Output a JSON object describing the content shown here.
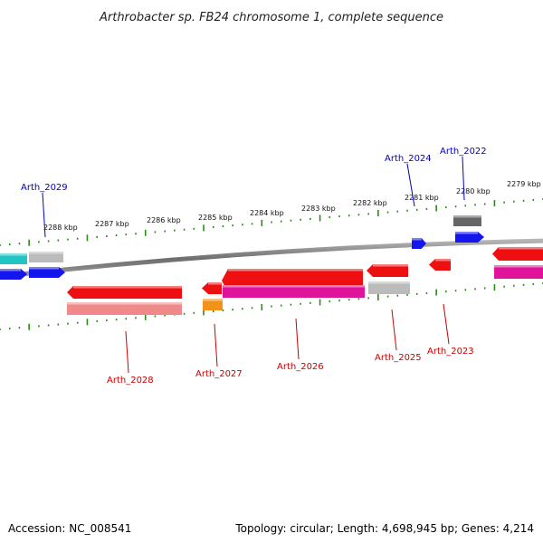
{
  "title": "Arthrobacter sp. FB24 chromosome 1, complete sequence",
  "footer": {
    "accession": "Accession: NC_008541",
    "summary": "Topology: circular; Length: 4,698,945 bp; Genes: 4,214"
  },
  "colors": {
    "backbone": "#777777",
    "ticks": "#2a8a1a",
    "forward_label": "#0000cc",
    "reverse_label": "#cc0000"
  },
  "scale_labels": [
    "2288 kbp",
    "2287 kbp",
    "2286 kbp",
    "2285 kbp",
    "2284 kbp",
    "2283 kbp",
    "2282 kbp",
    "2281 kbp",
    "2280 kbp",
    "2279 kbp"
  ],
  "gene_labels": {
    "forward": [
      "Arth_2029",
      "Arth_2024",
      "Arth_2022"
    ],
    "reverse": [
      "Arth_2028",
      "Arth_2027",
      "Arth_2026",
      "Arth_2025",
      "Arth_2023"
    ]
  }
}
